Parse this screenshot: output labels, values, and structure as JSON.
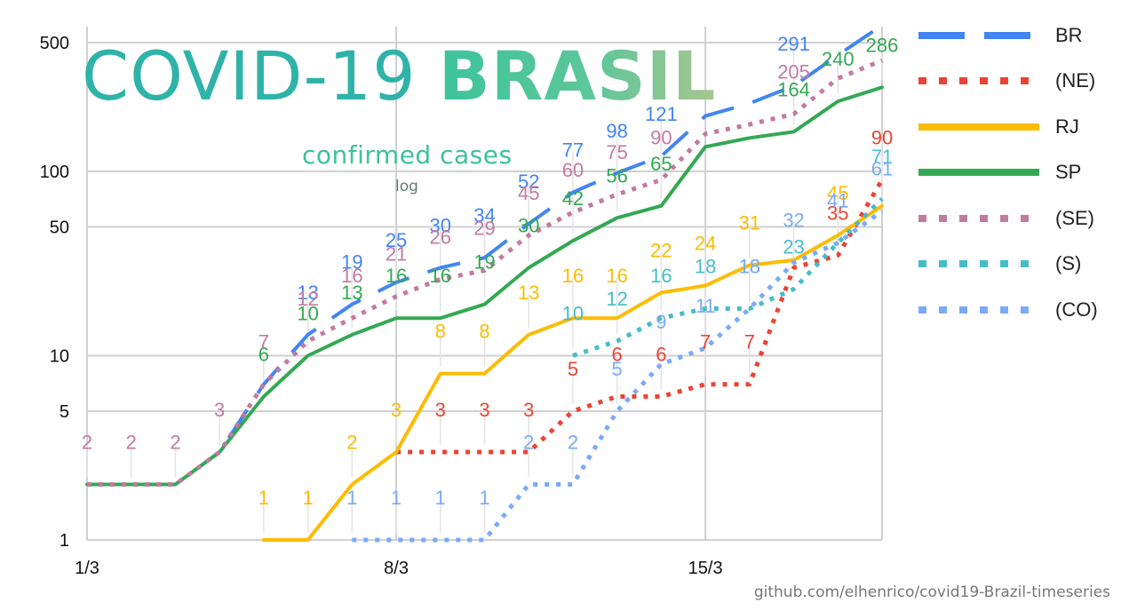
{
  "title": {
    "main": "COVID-19 ",
    "bold": "BRASIL"
  },
  "subtitle": "confirmed cases",
  "scale_note": "log",
  "credit": "github.com/elhenrico/covid19-Brazil-timeseries",
  "colors": {
    "BR": "#4285f4",
    "NE": "#ea4335",
    "RJ": "#fbbc04",
    "SP": "#34a853",
    "SE": "#c27ba0",
    "S": "#46bdc6",
    "CO": "#7baaf7"
  },
  "chart_data": {
    "type": "line",
    "yscale": "log",
    "ylim": [
      1,
      600
    ],
    "yticks": [
      1,
      5,
      10,
      50,
      100,
      500
    ],
    "x": [
      "1/3",
      "2/3",
      "3/3",
      "4/3",
      "5/3",
      "6/3",
      "7/3",
      "8/3",
      "9/3",
      "10/3",
      "11/3",
      "12/3",
      "13/3",
      "14/3",
      "15/3",
      "16/3",
      "17/3",
      "18/3",
      "19/3"
    ],
    "xticks": [
      "1/3",
      "8/3",
      "15/3"
    ],
    "grid": true,
    "legend_position": "right",
    "series": [
      {
        "name": "BR",
        "key": "BR",
        "style": "dash",
        "values": [
          2,
          2,
          2,
          3,
          7,
          13,
          19,
          25,
          30,
          34,
          52,
          77,
          98,
          121,
          200,
          234,
          291,
          428,
          621
        ],
        "labels": [
          null,
          null,
          null,
          null,
          null,
          13,
          19,
          25,
          30,
          34,
          52,
          77,
          98,
          121,
          null,
          null,
          291,
          null,
          null
        ]
      },
      {
        "name": "(NE)",
        "key": "NE",
        "style": "dot",
        "values": [
          null,
          null,
          null,
          null,
          null,
          null,
          null,
          3,
          3,
          3,
          3,
          5,
          6,
          6,
          7,
          7,
          30,
          35,
          90
        ],
        "labels": [
          null,
          null,
          null,
          null,
          null,
          null,
          null,
          null,
          3,
          3,
          3,
          5,
          6,
          6,
          7,
          7,
          null,
          35,
          90
        ]
      },
      {
        "name": "RJ",
        "key": "RJ",
        "style": "solid",
        "values": [
          null,
          null,
          null,
          null,
          1,
          1,
          2,
          3,
          8,
          8,
          13,
          16,
          16,
          22,
          24,
          31,
          33,
          45,
          65
        ],
        "labels": [
          null,
          null,
          null,
          null,
          1,
          1,
          2,
          3,
          8,
          8,
          13,
          16,
          16,
          22,
          24,
          31,
          null,
          45,
          null
        ]
      },
      {
        "name": "SP",
        "key": "SP",
        "style": "solid",
        "values": [
          2,
          2,
          2,
          3,
          6,
          10,
          13,
          16,
          16,
          19,
          30,
          42,
          56,
          65,
          136,
          152,
          164,
          240,
          286
        ],
        "labels": [
          null,
          null,
          null,
          null,
          6,
          10,
          13,
          16,
          16,
          19,
          30,
          42,
          56,
          65,
          null,
          null,
          164,
          240,
          286
        ]
      },
      {
        "name": "(SE)",
        "key": "SE",
        "style": "dot",
        "values": [
          2,
          2,
          2,
          3,
          7,
          12,
          16,
          21,
          26,
          29,
          45,
          60,
          75,
          90,
          160,
          180,
          205,
          320,
          400
        ],
        "labels": [
          2,
          2,
          2,
          3,
          7,
          12,
          16,
          21,
          26,
          29,
          45,
          60,
          75,
          90,
          null,
          null,
          205,
          null,
          null
        ]
      },
      {
        "name": "(S)",
        "key": "S",
        "style": "dot",
        "values": [
          null,
          null,
          null,
          null,
          null,
          null,
          null,
          null,
          null,
          null,
          null,
          10,
          12,
          16,
          18,
          18,
          23,
          41,
          71
        ],
        "labels": [
          null,
          null,
          null,
          null,
          null,
          null,
          null,
          null,
          null,
          null,
          null,
          10,
          12,
          16,
          18,
          18,
          23,
          null,
          71
        ]
      },
      {
        "name": "(CO)",
        "key": "CO",
        "style": "dot",
        "values": [
          null,
          null,
          null,
          null,
          null,
          null,
          1,
          1,
          1,
          1,
          2,
          2,
          5,
          9,
          11,
          18,
          32,
          41,
          61
        ],
        "labels": [
          null,
          null,
          null,
          null,
          null,
          null,
          1,
          1,
          1,
          1,
          2,
          2,
          5,
          9,
          11,
          18,
          32,
          41,
          61
        ]
      }
    ]
  }
}
